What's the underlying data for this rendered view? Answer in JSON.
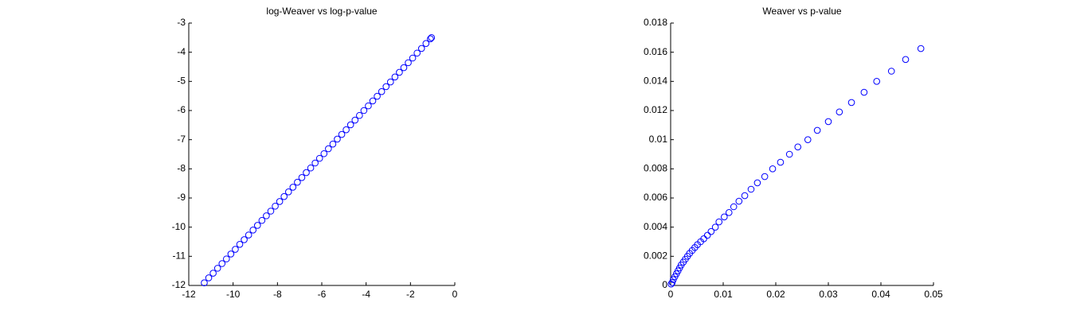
{
  "chart_data": [
    {
      "type": "scatter",
      "title": "log-Weaver vs log-p-value",
      "color": "#0000ff",
      "x": [
        -11.3,
        -11.1,
        -10.9,
        -10.7,
        -10.5,
        -10.3,
        -10.1,
        -9.9,
        -9.7,
        -9.5,
        -9.3,
        -9.1,
        -8.9,
        -8.7,
        -8.5,
        -8.3,
        -8.1,
        -7.9,
        -7.7,
        -7.5,
        -7.3,
        -7.1,
        -6.9,
        -6.7,
        -6.5,
        -6.3,
        -6.1,
        -5.9,
        -5.7,
        -5.5,
        -5.3,
        -5.1,
        -4.9,
        -4.7,
        -4.5,
        -4.3,
        -4.1,
        -3.9,
        -3.7,
        -3.5,
        -3.3,
        -3.1,
        -2.9,
        -2.7,
        -2.5,
        -2.3,
        -2.1,
        -1.9,
        -1.7,
        -1.5,
        -1.3,
        -1.1,
        -1.05
      ],
      "values": [
        -11.91,
        -11.74,
        -11.58,
        -11.41,
        -11.25,
        -11.09,
        -10.92,
        -10.76,
        -10.59,
        -10.43,
        -10.27,
        -10.1,
        -9.94,
        -9.77,
        -9.61,
        -9.45,
        -9.28,
        -9.12,
        -8.95,
        -8.79,
        -8.63,
        -8.46,
        -8.3,
        -8.13,
        -7.97,
        -7.8,
        -7.64,
        -7.48,
        -7.31,
        -7.15,
        -6.98,
        -6.82,
        -6.66,
        -6.49,
        -6.33,
        -6.17,
        -6.0,
        -5.84,
        -5.67,
        -5.51,
        -5.35,
        -5.18,
        -5.02,
        -4.85,
        -4.69,
        -4.53,
        -4.36,
        -4.2,
        -4.03,
        -3.87,
        -3.7,
        -3.54,
        -3.5
      ],
      "xlim": [
        -12,
        0
      ],
      "xticks": [
        -12,
        -10,
        -8,
        -6,
        -4,
        -2,
        0
      ],
      "ylim": [
        -12,
        -3
      ],
      "yticks": [
        -12,
        -11,
        -10,
        -9,
        -8,
        -7,
        -6,
        -5,
        -4,
        -3
      ]
    },
    {
      "type": "scatter",
      "title": "Weaver vs p-value",
      "color": "#0000ff",
      "x": [
        0.0001,
        0.0003,
        0.0005,
        0.0008,
        0.0011,
        0.0014,
        0.0017,
        0.002,
        0.0024,
        0.0028,
        0.0032,
        0.0036,
        0.0041,
        0.0046,
        0.0051,
        0.0057,
        0.0063,
        0.007,
        0.0077,
        0.0085,
        0.0092,
        0.0102,
        0.0111,
        0.012,
        0.013,
        0.0141,
        0.0153,
        0.0165,
        0.0179,
        0.0194,
        0.0209,
        0.0226,
        0.0242,
        0.0261,
        0.0279,
        0.03,
        0.0321,
        0.0344,
        0.0368,
        0.0392,
        0.042,
        0.0447,
        0.0476
      ],
      "values": [
        0.0001,
        0.0002,
        0.0004,
        0.0006,
        0.0008,
        0.001,
        0.0012,
        0.0014,
        0.0016,
        0.0018,
        0.002,
        0.0022,
        0.0024,
        0.0026,
        0.0028,
        0.003,
        0.0032,
        0.00344,
        0.0037,
        0.004,
        0.00436,
        0.0047,
        0.005,
        0.0054,
        0.00578,
        0.00616,
        0.0066,
        0.00704,
        0.00747,
        0.008,
        0.00845,
        0.009,
        0.0095,
        0.01,
        0.01064,
        0.01124,
        0.0119,
        0.01255,
        0.01325,
        0.014,
        0.0147,
        0.0155,
        0.01625
      ],
      "xlim": [
        0,
        0.05
      ],
      "xticks": [
        0,
        0.01,
        0.02,
        0.03,
        0.04,
        0.05
      ],
      "ylim": [
        0,
        0.018
      ],
      "yticks": [
        0,
        0.002,
        0.004,
        0.006,
        0.008,
        0.01,
        0.012,
        0.014,
        0.016,
        0.018
      ]
    }
  ]
}
